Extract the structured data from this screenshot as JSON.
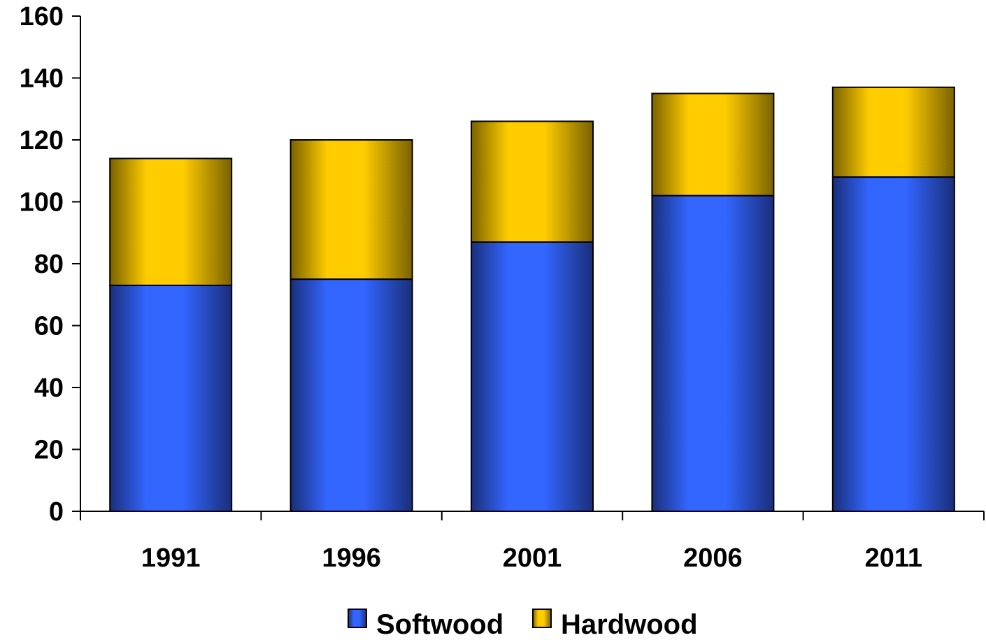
{
  "chart_data": {
    "type": "bar",
    "stacked": true,
    "title": "",
    "xlabel": "",
    "ylabel": "",
    "categories": [
      "1991",
      "1996",
      "2001",
      "2006",
      "2011"
    ],
    "series": [
      {
        "name": "Softwood",
        "values": [
          73,
          75,
          87,
          102,
          108
        ],
        "color": "#3366FF"
      },
      {
        "name": "Hardwood",
        "values": [
          41,
          45,
          39,
          33,
          29
        ],
        "color": "#FFCC00"
      }
    ],
    "ylim": [
      0,
      160
    ],
    "yticks": [
      "0",
      "20",
      "40",
      "60",
      "80",
      "100",
      "120",
      "140",
      "160"
    ],
    "grid": false,
    "legend_position": "bottom-center"
  }
}
